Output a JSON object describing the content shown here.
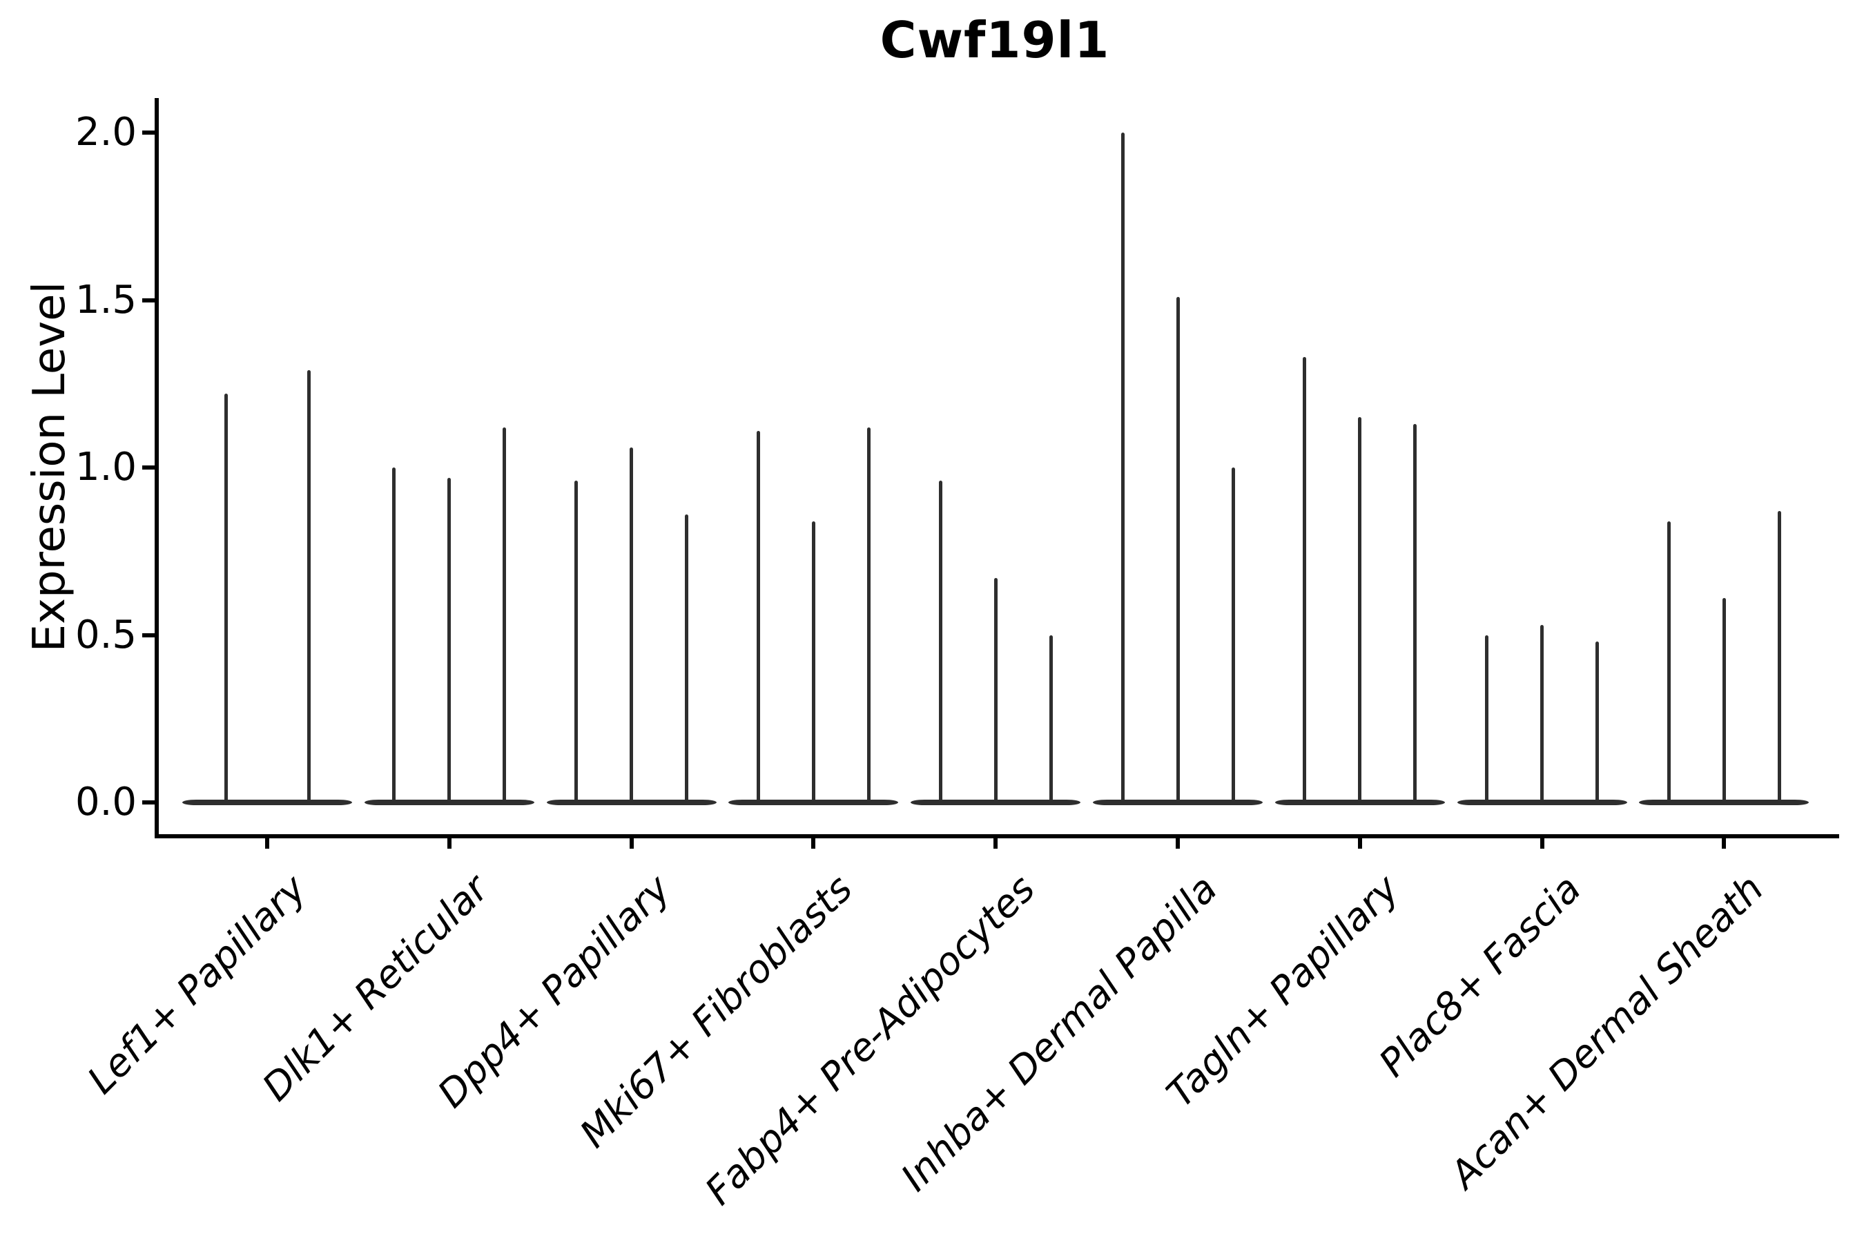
{
  "figure": {
    "title": "Cwf19l1",
    "ylabel": "Expression Level"
  },
  "chart_data": {
    "type": "violin",
    "title": "Cwf19l1",
    "xlabel": "",
    "ylabel": "Expression Level",
    "ylim": [
      -0.1,
      2.1
    ],
    "yticks": [
      0.0,
      0.5,
      1.0,
      1.5,
      2.0
    ],
    "ytick_labels": [
      "0.0",
      "0.5",
      "1.0",
      "1.5",
      "2.0"
    ],
    "grid": false,
    "legend_position": "none",
    "style": {
      "violin_color": "#2e2e2e",
      "spine_color": "#000000",
      "background": "#ffffff"
    },
    "note": "Zero-inflated expression: each violin is a wide flat lens at 0 with a needle-thin spike up to the max expressing cell",
    "categories": [
      {
        "label": "Lef1+ Papillary",
        "violin_maxima": [
          1.22,
          1.29
        ]
      },
      {
        "label": "Dlk1+ Reticular",
        "violin_maxima": [
          1.0,
          0.97,
          1.12
        ]
      },
      {
        "label": "Dpp4+ Papillary",
        "violin_maxima": [
          0.96,
          1.06,
          0.86
        ]
      },
      {
        "label": "Mki67+ Fibroblasts",
        "violin_maxima": [
          1.11,
          0.84,
          1.12
        ]
      },
      {
        "label": "Fabp4+ Pre-Adipocytes",
        "violin_maxima": [
          0.96,
          0.67,
          0.5
        ]
      },
      {
        "label": "Inhba+ Dermal Papilla",
        "violin_maxima": [
          2.0,
          1.51,
          1.0
        ]
      },
      {
        "label": "Tagln+ Papillary",
        "violin_maxima": [
          1.33,
          1.15,
          1.13
        ]
      },
      {
        "label": "Plac8+ Fascia",
        "violin_maxima": [
          0.5,
          0.53,
          0.48
        ]
      },
      {
        "label": "Acan+ Dermal Sheath",
        "violin_maxima": [
          0.84,
          0.61,
          0.87
        ]
      }
    ]
  }
}
